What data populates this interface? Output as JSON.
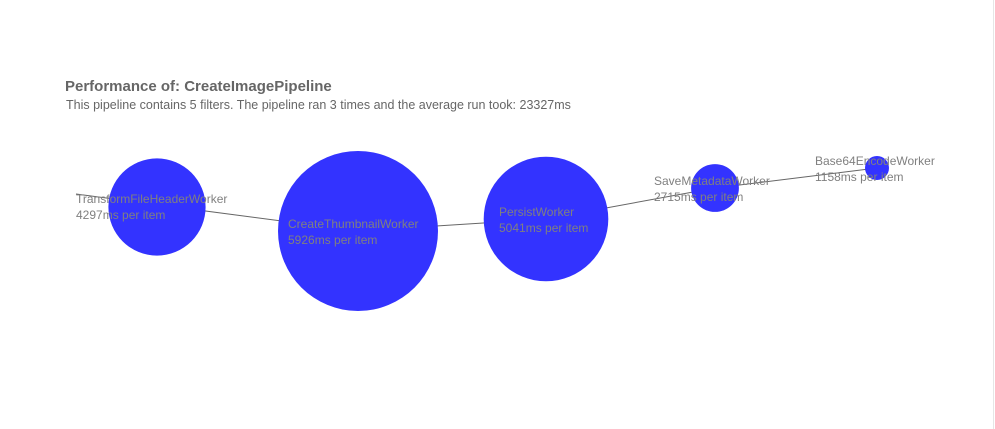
{
  "header": {
    "title": "Performance of: CreateImagePipeline",
    "subtitle": "This pipeline contains 5 filters. The pipeline ran 3 times and the average run took: 23327ms"
  },
  "colors": {
    "node_fill": "#3333ff",
    "connector": "#666666",
    "label_text": "#808080",
    "title_text": "#666666"
  },
  "pipeline": {
    "filters": [
      {
        "name": "TransformFileHeaderWorker",
        "time_label": "4297ms per item",
        "ms_per_item": 4297
      },
      {
        "name": "CreateThumbnailWorker",
        "time_label": "5926ms per item",
        "ms_per_item": 5926
      },
      {
        "name": "PersistWorker",
        "time_label": "5041ms per item",
        "ms_per_item": 5041
      },
      {
        "name": "SaveMetadataWorker",
        "time_label": "2715ms per item",
        "ms_per_item": 2715
      },
      {
        "name": "Base64EncodeWorker",
        "time_label": "1158ms per item",
        "ms_per_item": 1158
      }
    ]
  }
}
